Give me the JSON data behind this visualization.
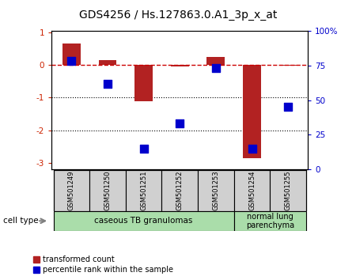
{
  "title": "GDS4256 / Hs.127863.0.A1_3p_x_at",
  "samples": [
    "GSM501249",
    "GSM501250",
    "GSM501251",
    "GSM501252",
    "GSM501253",
    "GSM501254",
    "GSM501255"
  ],
  "transformed_count": [
    0.65,
    0.15,
    -1.1,
    -0.05,
    0.25,
    -2.85,
    -0.02
  ],
  "percentile_rank": [
    78,
    62,
    15,
    33,
    73,
    15,
    45
  ],
  "ylim_left": [
    -3.2,
    1.05
  ],
  "ylim_right": [
    0,
    100
  ],
  "left_ticks": [
    -3,
    -2,
    -1,
    0,
    1
  ],
  "left_tick_labels": [
    "-3",
    "-2",
    "-1",
    "0",
    "1"
  ],
  "right_ticks": [
    0,
    25,
    50,
    75,
    100
  ],
  "right_tick_labels": [
    "0",
    "25",
    "50",
    "75",
    "100%"
  ],
  "hline_color": "#CC0000",
  "bar_color": "#B22222",
  "dot_color": "#0000CC",
  "dotline_color": "black",
  "group1_label": "caseous TB granulomas",
  "group2_label": "normal lung\nparenchyma",
  "group1_color": "#AADDAA",
  "group2_color": "#AADDAA",
  "cell_type_label": "cell type",
  "legend_red_label": "transformed count",
  "legend_blue_label": "percentile rank within the sample",
  "bar_width": 0.5,
  "dot_size": 45,
  "title_fontsize": 10,
  "tick_fontsize": 7.5,
  "sample_fontsize": 6,
  "ct_fontsize": 7.5,
  "legend_fontsize": 7
}
